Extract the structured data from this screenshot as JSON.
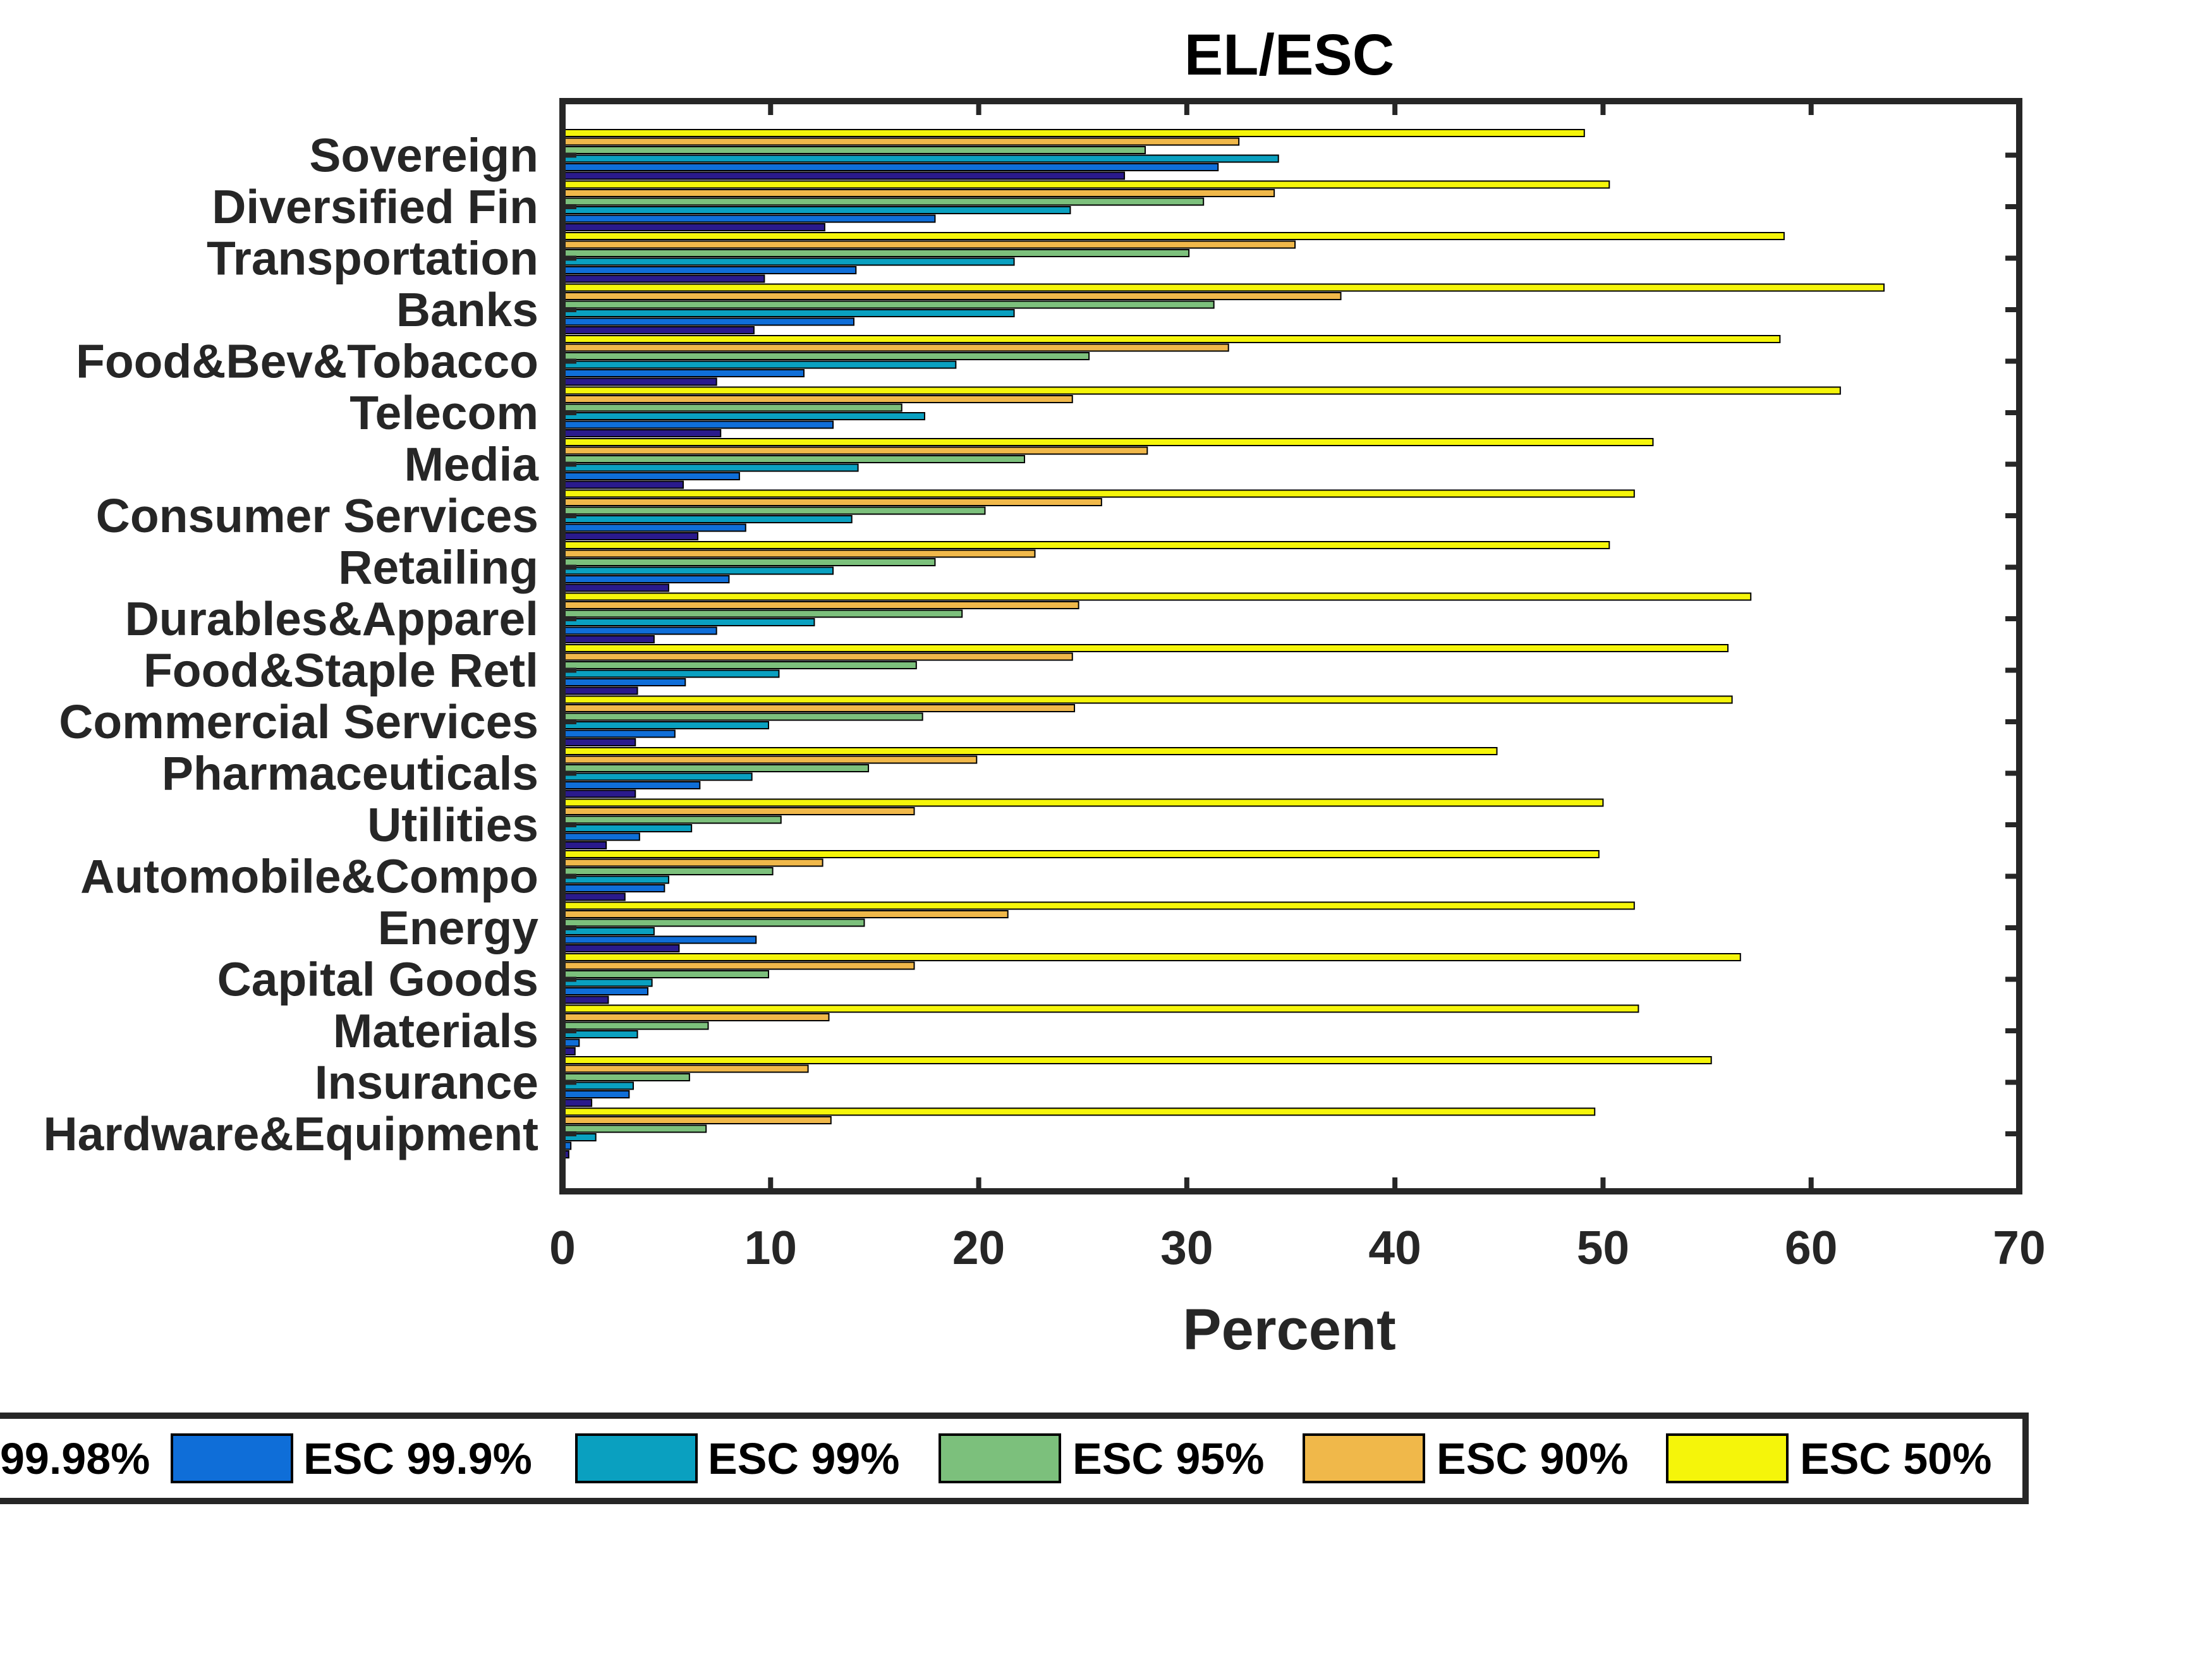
{
  "chart_data": {
    "type": "bar",
    "orientation": "horizontal",
    "title": "EL/ESC",
    "xlabel": "Percent",
    "ylabel": "",
    "xlim": [
      0,
      70
    ],
    "xticks": [
      0,
      10,
      20,
      30,
      40,
      50,
      60,
      70
    ],
    "grid": false,
    "legend_position": "bottom",
    "categories": [
      "Sovereign",
      "Diversified Fin",
      "Transportation",
      "Banks",
      "Food&Bev&Tobacco",
      "Telecom",
      "Media",
      "Consumer Services",
      "Retailing",
      "Durables&Apparel",
      "Food&Staple Retl",
      "Commercial Services",
      "Pharmaceuticals",
      "Utilities",
      "Automobile&Compo",
      "Energy",
      "Capital Goods",
      "Materials",
      "Insurance",
      "Hardware&Equipment"
    ],
    "series": [
      {
        "name": "99.98%",
        "color": "#2a1a8c",
        "values": [
          27,
          12.6,
          9.7,
          9.2,
          7.4,
          7.6,
          5.8,
          6.5,
          5.1,
          4.4,
          3.6,
          3.5,
          3.5,
          2.1,
          3.0,
          5.6,
          2.2,
          0.6,
          1.4,
          0.3
        ]
      },
      {
        "name": "ESC 99.9%",
        "color": "#0f6ed8",
        "values": [
          31.5,
          17.9,
          14.1,
          14.0,
          11.6,
          13.0,
          8.5,
          8.8,
          8.0,
          7.4,
          5.9,
          5.4,
          6.6,
          3.7,
          4.9,
          9.3,
          4.1,
          0.8,
          3.2,
          0.4
        ]
      },
      {
        "name": "ESC 99%",
        "color": "#0aa0c0",
        "values": [
          34.4,
          24.4,
          21.7,
          21.7,
          18.9,
          17.4,
          14.2,
          13.9,
          13.0,
          12.1,
          10.4,
          9.9,
          9.1,
          6.2,
          5.1,
          4.4,
          4.3,
          3.6,
          3.4,
          1.6
        ]
      },
      {
        "name": "ESC 95%",
        "color": "#7cc07c",
        "values": [
          28.0,
          30.8,
          30.1,
          31.3,
          25.3,
          16.3,
          22.2,
          20.3,
          17.9,
          19.2,
          17.0,
          17.3,
          14.7,
          10.5,
          10.1,
          14.5,
          9.9,
          7.0,
          6.1,
          6.9
        ]
      },
      {
        "name": "ESC 90%",
        "color": "#f0b84a",
        "values": [
          32.5,
          34.2,
          35.2,
          37.4,
          32.0,
          24.5,
          28.1,
          25.9,
          22.7,
          24.8,
          24.5,
          24.6,
          19.9,
          16.9,
          12.5,
          21.4,
          16.9,
          12.8,
          11.8,
          12.9
        ]
      },
      {
        "name": "ESC 50%",
        "color": "#f5f50a",
        "values": [
          49.1,
          50.3,
          58.7,
          63.5,
          58.5,
          61.4,
          52.4,
          51.5,
          50.3,
          57.1,
          56.0,
          56.2,
          44.9,
          50.0,
          49.8,
          51.5,
          56.6,
          51.7,
          55.2,
          49.6
        ]
      }
    ]
  }
}
